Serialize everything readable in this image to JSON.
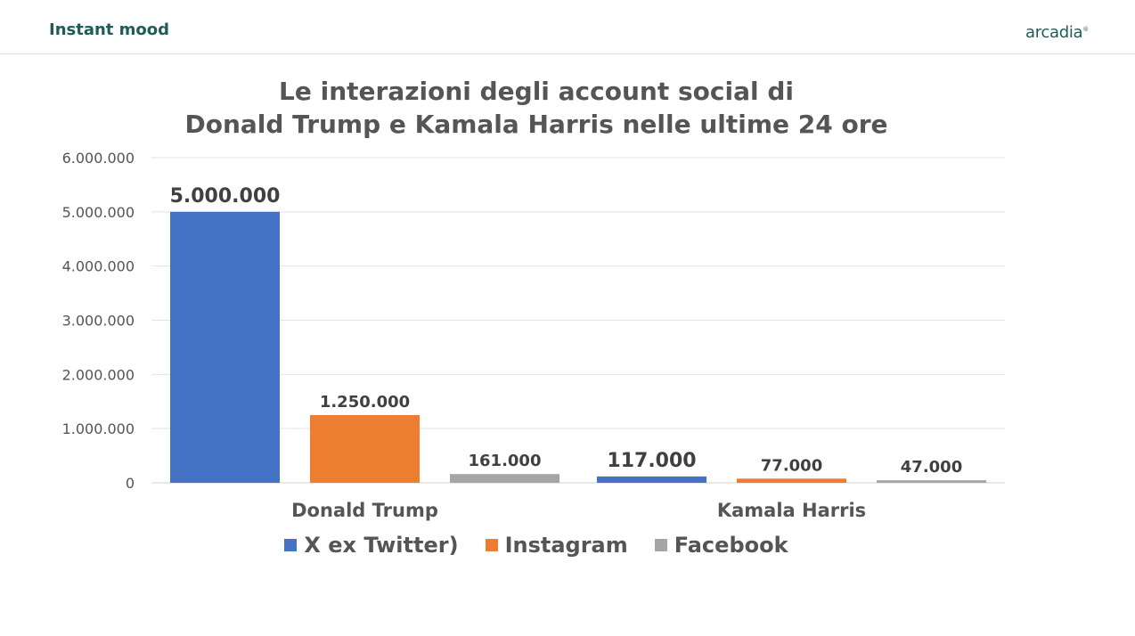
{
  "header": {
    "title": "Instant mood",
    "brand": "arcadia",
    "brand_mark": "®"
  },
  "chart_data": {
    "type": "bar",
    "title_lines": [
      "Le interazioni degli account social di",
      "Donald Trump e Kamala Harris nelle ultime 24 ore"
    ],
    "categories": [
      "Donald Trump",
      "Kamala Harris"
    ],
    "series": [
      {
        "name": "X ex Twitter)",
        "color": "#4472c4",
        "values": [
          5000000,
          117000
        ],
        "labels": [
          "5.000.000",
          "117.000"
        ]
      },
      {
        "name": "Instagram",
        "color": "#ed7d31",
        "values": [
          1250000,
          77000
        ],
        "labels": [
          "1.250.000",
          "77.000"
        ]
      },
      {
        "name": "Facebook",
        "color": "#a5a5a5",
        "values": [
          161000,
          47000
        ],
        "labels": [
          "161.000",
          "47.000"
        ]
      }
    ],
    "ylim": [
      0,
      6000000
    ],
    "yticks": [
      0,
      1000000,
      2000000,
      3000000,
      4000000,
      5000000,
      6000000
    ],
    "ytick_labels": [
      "0",
      "1.000.000",
      "2.000.000",
      "3.000.000",
      "4.000.000",
      "5.000.000",
      "6.000.000"
    ],
    "grid": true,
    "legend": "bottom"
  }
}
